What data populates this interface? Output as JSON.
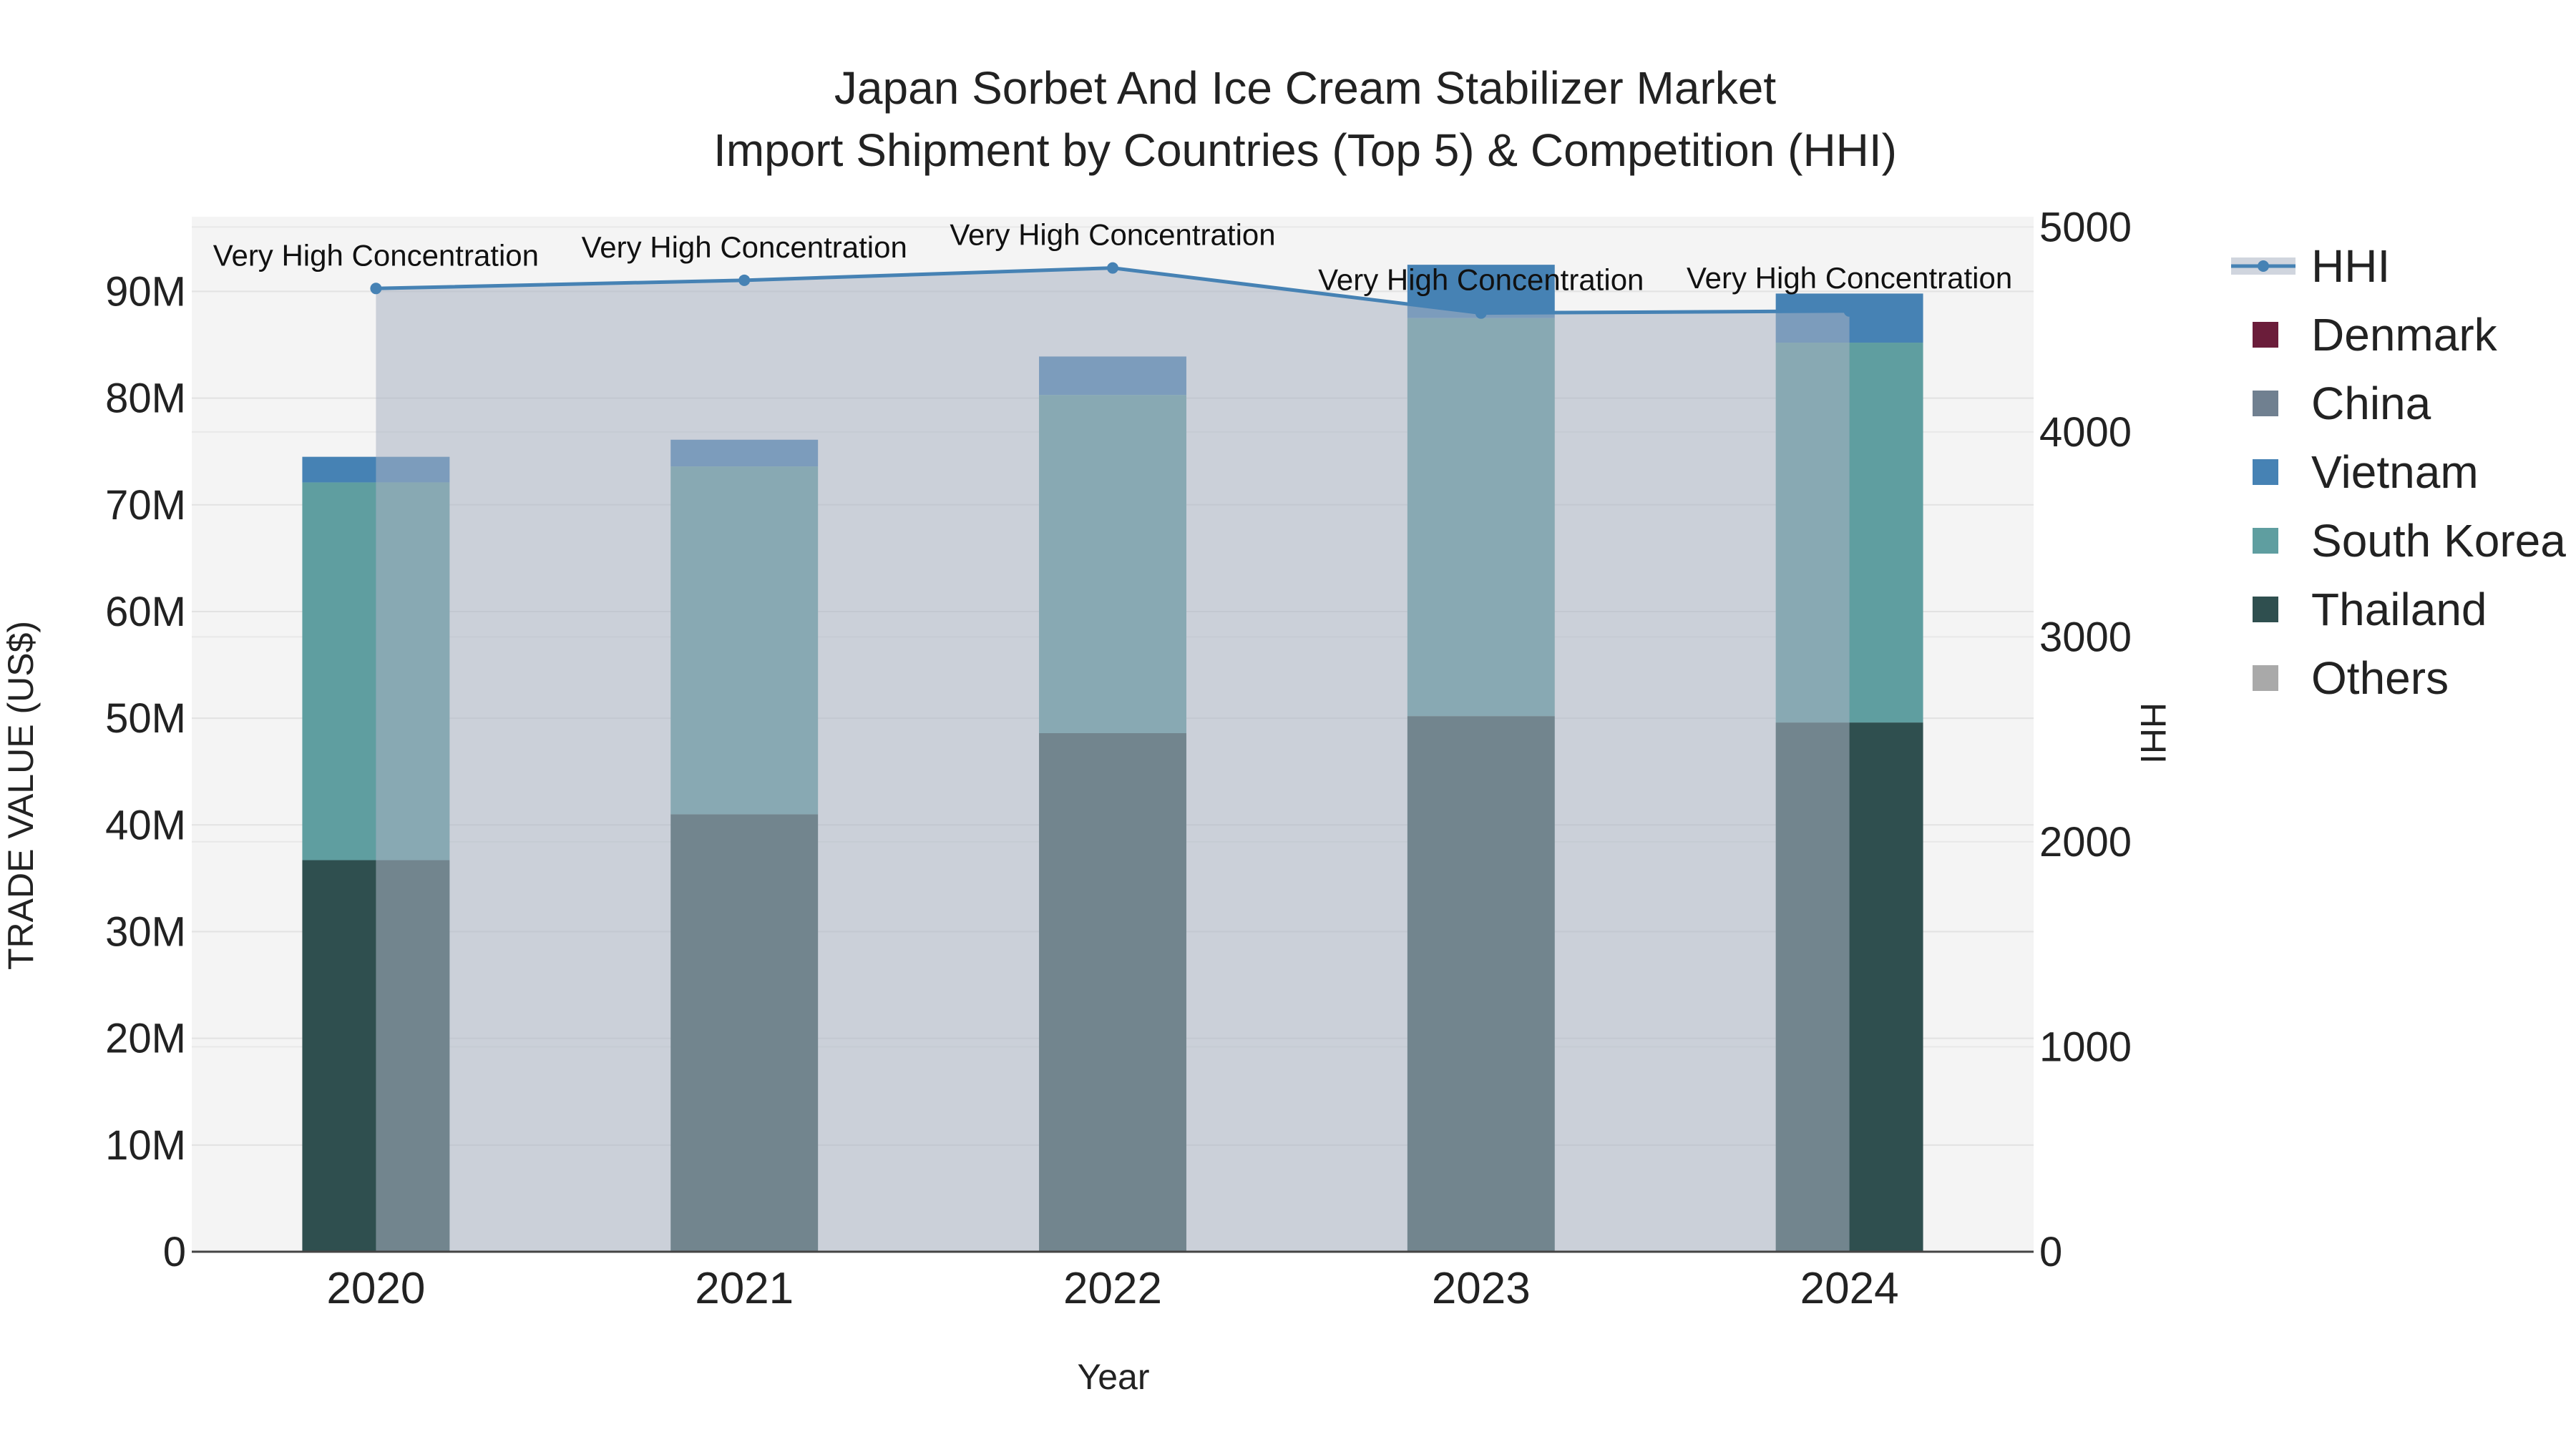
{
  "chart_data": {
    "type": "bar",
    "title_line1": "Japan Sorbet And Ice Cream Stabilizer Market",
    "title_line2": "Import Shipment by Countries (Top 5) & Competition (HHI)",
    "xlabel": "Year",
    "ylabel": "TRADE VALUE (US$)",
    "y2label": "HHI",
    "categories": [
      "2020",
      "2021",
      "2022",
      "2023",
      "2024"
    ],
    "ylim": [
      0,
      97000000
    ],
    "y2lim": [
      0,
      5050
    ],
    "y_ticks": [
      {
        "value": 0,
        "label": "0"
      },
      {
        "value": 10000000,
        "label": "10M"
      },
      {
        "value": 20000000,
        "label": "20M"
      },
      {
        "value": 30000000,
        "label": "30M"
      },
      {
        "value": 40000000,
        "label": "40M"
      },
      {
        "value": 50000000,
        "label": "50M"
      },
      {
        "value": 60000000,
        "label": "60M"
      },
      {
        "value": 70000000,
        "label": "70M"
      },
      {
        "value": 80000000,
        "label": "80M"
      },
      {
        "value": 90000000,
        "label": "90M"
      }
    ],
    "y2_ticks": [
      {
        "value": 0,
        "label": "0"
      },
      {
        "value": 1000,
        "label": "1000"
      },
      {
        "value": 2000,
        "label": "2000"
      },
      {
        "value": 3000,
        "label": "3000"
      },
      {
        "value": 4000,
        "label": "4000"
      },
      {
        "value": 5000,
        "label": "5000"
      }
    ],
    "series": [
      {
        "name": "Thailand",
        "color": "#2f4f4f",
        "values": [
          36700000,
          41000000,
          48600000,
          50200000,
          49600000
        ]
      },
      {
        "name": "South Korea",
        "color": "#5f9ea0",
        "values": [
          35400000,
          32600000,
          31700000,
          37300000,
          35600000
        ]
      },
      {
        "name": "Vietnam",
        "color": "#4682b4",
        "values": [
          2400000,
          2500000,
          3600000,
          5000000,
          4600000
        ]
      },
      {
        "name": "China",
        "color": "#708090",
        "values": [
          0,
          0,
          0,
          0,
          0
        ]
      },
      {
        "name": "Denmark",
        "color": "#6b1d3a",
        "values": [
          0,
          0,
          0,
          0,
          0
        ]
      },
      {
        "name": "Others",
        "color": "#a9a9a9",
        "values": [
          0,
          0,
          0,
          0,
          0
        ]
      }
    ],
    "hhi": {
      "name": "HHI",
      "color": "#4682b4",
      "values": [
        4700,
        4740,
        4800,
        4580,
        4590
      ],
      "labels": [
        "Very High Concentration",
        "Very High Concentration",
        "Very High Concentration",
        "Very High Concentration",
        "Very High Concentration"
      ]
    },
    "legend": [
      "HHI",
      "Denmark",
      "China",
      "Vietnam",
      "South Korea",
      "Thailand",
      "Others"
    ],
    "grid": true,
    "legend_position": "right",
    "plot_background": "#f4f4f4"
  }
}
